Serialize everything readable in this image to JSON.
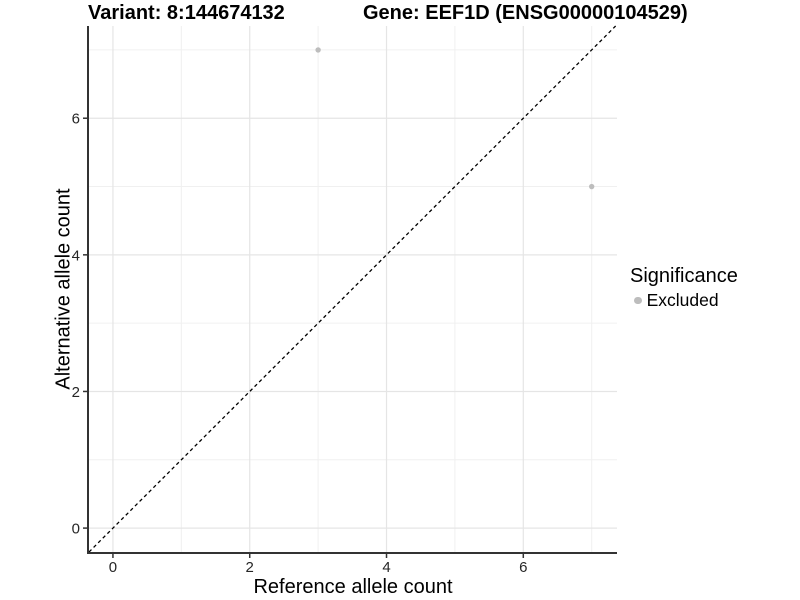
{
  "figure": {
    "title_left": "Variant: 8:144674132",
    "title_right": "Gene: EEF1D (ENSG00000104529)"
  },
  "legend": {
    "title": "Significance",
    "items": [
      {
        "label": "Excluded",
        "color": "#bdbdbd",
        "marker": "circle"
      }
    ]
  },
  "chart_data": {
    "type": "scatter",
    "title": "Variant: 8:144674132  /  Gene: EEF1D (ENSG00000104529)",
    "xlabel": "Reference allele count",
    "ylabel": "Alternative allele count",
    "xlim": [
      -0.35,
      7.37
    ],
    "ylim": [
      -0.35,
      7.35
    ],
    "x_ticks": [
      0,
      2,
      4,
      6
    ],
    "x_tick_labels": [
      "0",
      "2",
      "4",
      "6"
    ],
    "y_ticks": [
      0,
      2,
      4,
      6
    ],
    "y_tick_labels": [
      "0",
      "2",
      "4",
      "6"
    ],
    "x_minor_gridlines": [
      1,
      3,
      5,
      7
    ],
    "y_minor_gridlines": [
      1,
      3,
      5,
      7
    ],
    "grid": "on",
    "legend_position": "right",
    "series": [
      {
        "name": "Excluded",
        "color": "#bdbdbd",
        "points": [
          [
            3,
            7
          ],
          [
            7,
            5
          ]
        ]
      }
    ],
    "reference_line": {
      "kind": "identity",
      "slope": 1,
      "intercept": 0,
      "linestyle": "dashed",
      "color": "#000000"
    },
    "style": {
      "background": "#ffffff",
      "major_gridline_color": "#e5e5e5",
      "minor_gridline_color": "#f0f0f0",
      "axis_line_color": "#333333",
      "tick_color": "#333333",
      "tick_label_color": "#262626",
      "point_radius_px": 2.7,
      "legend_marker_radius_px": 3.8
    }
  }
}
